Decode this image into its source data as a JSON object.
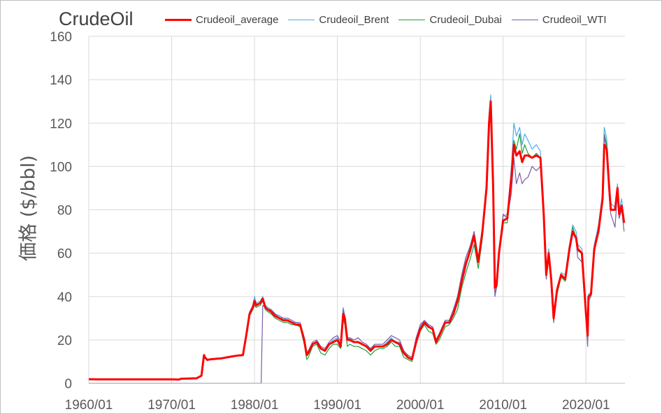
{
  "chart_data": {
    "type": "line",
    "title": "CrudeOil",
    "xlabel": "",
    "ylabel": "価格 ($/bbl)",
    "xlim": [
      1960.0,
      2024.7
    ],
    "ylim": [
      0,
      160
    ],
    "yticks": [
      0,
      20,
      40,
      60,
      80,
      100,
      120,
      140,
      160
    ],
    "xticks": [
      {
        "value": 1960,
        "label": "1960/01"
      },
      {
        "value": 1970,
        "label": "1970/01"
      },
      {
        "value": 1980,
        "label": "1980/01"
      },
      {
        "value": 1990,
        "label": "1990/01"
      },
      {
        "value": 2000,
        "label": "2000/01"
      },
      {
        "value": 2010,
        "label": "2010/01"
      },
      {
        "value": 2020,
        "label": "2020/01"
      }
    ],
    "grid": true,
    "legend_position": "top",
    "series": [
      {
        "name": "Crudeoil_average",
        "color": "#ff0000",
        "width": 3,
        "x": [
          1960.0,
          1961.0,
          1965.0,
          1970.0,
          1970.9,
          1971.1,
          1973.0,
          1973.6,
          1973.9,
          1974.0,
          1974.3,
          1974.6,
          1976.0,
          1977.0,
          1978.0,
          1978.6,
          1979.0,
          1979.4,
          1979.8,
          1980.0,
          1980.2,
          1980.7,
          1981.0,
          1981.3,
          1981.6,
          1982.0,
          1982.5,
          1983.0,
          1983.5,
          1984.0,
          1984.5,
          1985.0,
          1985.5,
          1986.0,
          1986.3,
          1986.5,
          1987.0,
          1987.5,
          1988.0,
          1988.5,
          1989.0,
          1989.5,
          1990.0,
          1990.4,
          1990.7,
          1990.9,
          1991.2,
          1991.5,
          1992.0,
          1992.5,
          1993.0,
          1993.5,
          1994.0,
          1994.5,
          1995.0,
          1995.5,
          1996.0,
          1996.5,
          1997.0,
          1997.5,
          1998.0,
          1998.5,
          1999.0,
          1999.5,
          2000.0,
          2000.5,
          2001.0,
          2001.5,
          2001.9,
          2002.3,
          2003.0,
          2003.5,
          2004.0,
          2004.5,
          2005.0,
          2005.5,
          2006.0,
          2006.5,
          2007.0,
          2007.5,
          2008.0,
          2008.3,
          2008.5,
          2008.8,
          2009.0,
          2009.2,
          2009.5,
          2010.0,
          2010.5,
          2011.0,
          2011.3,
          2011.6,
          2012.0,
          2012.3,
          2012.6,
          2013.0,
          2013.5,
          2014.0,
          2014.5,
          2014.9,
          2015.2,
          2015.5,
          2015.8,
          2016.1,
          2016.5,
          2017.0,
          2017.5,
          2018.0,
          2018.4,
          2018.8,
          2019.0,
          2019.5,
          2020.0,
          2020.2,
          2020.3,
          2020.6,
          2021.0,
          2021.5,
          2022.0,
          2022.2,
          2022.5,
          2022.8,
          2023.0,
          2023.5,
          2023.8,
          2024.0,
          2024.3,
          2024.6
        ],
        "values": [
          1.9,
          1.8,
          1.8,
          1.8,
          1.7,
          2.1,
          2.3,
          3.5,
          13,
          12,
          10.8,
          11,
          11.5,
          12.2,
          12.8,
          13,
          22,
          32,
          35,
          38,
          36,
          37,
          39,
          35,
          34,
          33,
          31,
          30,
          29,
          29,
          28,
          27,
          27,
          20,
          13,
          14,
          18,
          19,
          16,
          15,
          18,
          19,
          20,
          17,
          32,
          30,
          20,
          20,
          19,
          19,
          18,
          17,
          15,
          17,
          17,
          17,
          18,
          20,
          19,
          18,
          14,
          12,
          11,
          19,
          25,
          28,
          26,
          25,
          19,
          22,
          28,
          28,
          32,
          38,
          47,
          55,
          61,
          68,
          56,
          70,
          90,
          120,
          130,
          90,
          44,
          45,
          60,
          75,
          76,
          95,
          110,
          105,
          107,
          102,
          105,
          105,
          104,
          105,
          104,
          78,
          50,
          60,
          48,
          30,
          43,
          50,
          48,
          62,
          70,
          67,
          62,
          60,
          32,
          22,
          40,
          41,
          62,
          70,
          85,
          110,
          108,
          90,
          80,
          80,
          90,
          78,
          82,
          74
        ]
      },
      {
        "name": "Crudeoil_Brent",
        "color": "#4aaee8",
        "width": 1.2,
        "x": [
          1960.0,
          1961.0,
          1965.0,
          1970.0,
          1970.9,
          1971.1,
          1973.0,
          1973.6,
          1973.9,
          1974.0,
          1974.3,
          1974.6,
          1976.0,
          1977.0,
          1978.0,
          1978.6,
          1979.0,
          1979.4,
          1979.8,
          1980.0,
          1980.2,
          1980.7,
          1981.0,
          1981.3,
          1981.6,
          1982.0,
          1982.5,
          1983.0,
          1983.5,
          1984.0,
          1984.5,
          1985.0,
          1985.5,
          1986.0,
          1986.3,
          1986.5,
          1987.0,
          1987.5,
          1988.0,
          1988.5,
          1989.0,
          1989.5,
          1990.0,
          1990.4,
          1990.7,
          1990.9,
          1991.2,
          1991.5,
          1992.0,
          1992.5,
          1993.0,
          1993.5,
          1994.0,
          1994.5,
          1995.0,
          1995.5,
          1996.0,
          1996.5,
          1997.0,
          1997.5,
          1998.0,
          1998.5,
          1999.0,
          1999.5,
          2000.0,
          2000.5,
          2001.0,
          2001.5,
          2001.9,
          2002.3,
          2003.0,
          2003.5,
          2004.0,
          2004.5,
          2005.0,
          2005.5,
          2006.0,
          2006.5,
          2007.0,
          2007.5,
          2008.0,
          2008.3,
          2008.5,
          2008.8,
          2009.0,
          2009.2,
          2009.5,
          2010.0,
          2010.5,
          2011.0,
          2011.3,
          2011.6,
          2012.0,
          2012.3,
          2012.6,
          2013.0,
          2013.5,
          2014.0,
          2014.5,
          2014.9,
          2015.2,
          2015.5,
          2015.8,
          2016.1,
          2016.5,
          2017.0,
          2017.5,
          2018.0,
          2018.4,
          2018.8,
          2019.0,
          2019.5,
          2020.0,
          2020.2,
          2020.3,
          2020.6,
          2021.0,
          2021.5,
          2022.0,
          2022.2,
          2022.5,
          2022.8,
          2023.0,
          2023.5,
          2023.8,
          2024.0,
          2024.3,
          2024.6
        ],
        "values": [
          1.9,
          1.8,
          1.8,
          1.8,
          1.7,
          2.1,
          2.3,
          3.5,
          13,
          12,
          10.8,
          11,
          11.5,
          12.2,
          12.8,
          13,
          22,
          33,
          36,
          40,
          37,
          38,
          40,
          36,
          35,
          34,
          32,
          30,
          30,
          29,
          28,
          28,
          27,
          20,
          13,
          14,
          18,
          19,
          16,
          15,
          18,
          20,
          21,
          18,
          35,
          31,
          20,
          21,
          19,
          19,
          18,
          17,
          16,
          17,
          17,
          17,
          19,
          21,
          19,
          19,
          14,
          12,
          11,
          20,
          26,
          29,
          27,
          26,
          20,
          23,
          29,
          29,
          34,
          40,
          50,
          58,
          63,
          70,
          57,
          72,
          93,
          124,
          133,
          95,
          45,
          46,
          62,
          77,
          78,
          100,
          120,
          114,
          118,
          110,
          115,
          112,
          108,
          110,
          107,
          80,
          52,
          62,
          50,
          31,
          44,
          51,
          50,
          64,
          73,
          70,
          64,
          62,
          33,
          21,
          41,
          42,
          64,
          73,
          88,
          118,
          113,
          93,
          83,
          81,
          92,
          80,
          85,
          74
        ]
      },
      {
        "name": "Crudeoil_Dubai",
        "color": "#1e9e3a",
        "width": 1.2,
        "x": [
          1960.0,
          1961.0,
          1965.0,
          1970.0,
          1970.9,
          1971.1,
          1973.0,
          1973.6,
          1973.9,
          1974.0,
          1974.3,
          1974.6,
          1976.0,
          1977.0,
          1978.0,
          1978.6,
          1979.0,
          1979.4,
          1979.8,
          1980.0,
          1980.2,
          1980.7,
          1981.0,
          1981.3,
          1981.6,
          1982.0,
          1982.5,
          1983.0,
          1983.5,
          1984.0,
          1984.5,
          1985.0,
          1985.5,
          1986.0,
          1986.3,
          1986.5,
          1987.0,
          1987.5,
          1988.0,
          1988.5,
          1989.0,
          1989.5,
          1990.0,
          1990.4,
          1990.7,
          1990.9,
          1991.2,
          1991.5,
          1992.0,
          1992.5,
          1993.0,
          1993.5,
          1994.0,
          1994.5,
          1995.0,
          1995.5,
          1996.0,
          1996.5,
          1997.0,
          1997.5,
          1998.0,
          1998.5,
          1999.0,
          1999.5,
          2000.0,
          2000.5,
          2001.0,
          2001.5,
          2001.9,
          2002.3,
          2003.0,
          2003.5,
          2004.0,
          2004.5,
          2005.0,
          2005.5,
          2006.0,
          2006.5,
          2007.0,
          2007.5,
          2008.0,
          2008.3,
          2008.5,
          2008.8,
          2009.0,
          2009.2,
          2009.5,
          2010.0,
          2010.5,
          2011.0,
          2011.3,
          2011.6,
          2012.0,
          2012.3,
          2012.6,
          2013.0,
          2013.5,
          2014.0,
          2014.5,
          2014.9,
          2015.2,
          2015.5,
          2015.8,
          2016.1,
          2016.5,
          2017.0,
          2017.5,
          2018.0,
          2018.4,
          2018.8,
          2019.0,
          2019.5,
          2020.0,
          2020.2,
          2020.3,
          2020.6,
          2021.0,
          2021.5,
          2022.0,
          2022.2,
          2022.5,
          2022.8,
          2023.0,
          2023.5,
          2023.8,
          2024.0,
          2024.3,
          2024.6
        ],
        "values": [
          1.9,
          1.8,
          1.8,
          1.8,
          1.7,
          2.1,
          2.3,
          3.5,
          13,
          12,
          10.8,
          11,
          11.5,
          12.2,
          12.8,
          13,
          21,
          31,
          34,
          36,
          35,
          36,
          38,
          34,
          33,
          32,
          30,
          29,
          28,
          28,
          27,
          27,
          26,
          18,
          11,
          12,
          17,
          18,
          14,
          13,
          16,
          18,
          18,
          16,
          30,
          27,
          17,
          18,
          17,
          17,
          16,
          15,
          13,
          15,
          16,
          16,
          17,
          19,
          17,
          17,
          12,
          11,
          10,
          18,
          24,
          27,
          24,
          23,
          18,
          20,
          26,
          27,
          30,
          34,
          44,
          51,
          57,
          64,
          53,
          67,
          88,
          118,
          130,
          88,
          42,
          44,
          58,
          74,
          74,
          98,
          112,
          108,
          115,
          106,
          110,
          106,
          104,
          106,
          104,
          76,
          50,
          60,
          46,
          28,
          41,
          49,
          47,
          61,
          72,
          67,
          61,
          60,
          30,
          22,
          39,
          41,
          61,
          71,
          84,
          115,
          110,
          88,
          80,
          80,
          90,
          78,
          81,
          74
        ]
      },
      {
        "name": "Crudeoil_WTI",
        "color": "#7b5ea7",
        "width": 1.2,
        "x": [
          1960.0,
          1979.9,
          1980.0,
          1980.8,
          1981.0,
          1981.3,
          1981.6,
          1982.0,
          1982.5,
          1983.0,
          1983.5,
          1984.0,
          1984.5,
          1985.0,
          1985.5,
          1986.0,
          1986.3,
          1986.5,
          1987.0,
          1987.5,
          1988.0,
          1988.5,
          1989.0,
          1989.5,
          1990.0,
          1990.4,
          1990.7,
          1990.9,
          1991.2,
          1991.5,
          1992.0,
          1992.5,
          1993.0,
          1993.5,
          1994.0,
          1994.5,
          1995.0,
          1995.5,
          1996.0,
          1996.5,
          1997.0,
          1997.5,
          1998.0,
          1998.5,
          1999.0,
          1999.5,
          2000.0,
          2000.5,
          2001.0,
          2001.5,
          2001.9,
          2002.3,
          2003.0,
          2003.5,
          2004.0,
          2004.5,
          2005.0,
          2005.5,
          2006.0,
          2006.5,
          2007.0,
          2007.5,
          2008.0,
          2008.3,
          2008.5,
          2008.8,
          2009.0,
          2009.2,
          2009.5,
          2010.0,
          2010.5,
          2011.0,
          2011.3,
          2011.6,
          2012.0,
          2012.3,
          2012.6,
          2013.0,
          2013.5,
          2014.0,
          2014.5,
          2014.9,
          2015.2,
          2015.5,
          2015.8,
          2016.1,
          2016.5,
          2017.0,
          2017.5,
          2018.0,
          2018.4,
          2018.8,
          2019.0,
          2019.5,
          2020.0,
          2020.2,
          2020.3,
          2020.6,
          2021.0,
          2021.5,
          2022.0,
          2022.2,
          2022.5,
          2022.8,
          2023.0,
          2023.5,
          2023.8,
          2024.0,
          2024.3,
          2024.6
        ],
        "values": [
          0,
          0,
          0,
          0,
          36,
          35,
          34,
          34,
          32,
          31,
          30,
          30,
          29,
          28,
          28,
          21,
          14,
          15,
          19,
          20,
          17,
          16,
          19,
          21,
          22,
          19,
          34,
          31,
          21,
          21,
          20,
          21,
          19,
          18,
          16,
          18,
          18,
          18,
          20,
          22,
          21,
          20,
          15,
          13,
          12,
          21,
          27,
          29,
          27,
          26,
          20,
          23,
          29,
          29,
          34,
          40,
          50,
          58,
          63,
          70,
          57,
          72,
          92,
          122,
          130,
          92,
          40,
          44,
          60,
          78,
          76,
          88,
          104,
          92,
          97,
          92,
          94,
          95,
          100,
          98,
          100,
          78,
          48,
          58,
          46,
          29,
          42,
          50,
          48,
          60,
          70,
          66,
          58,
          56,
          30,
          17,
          38,
          40,
          60,
          70,
          83,
          114,
          108,
          86,
          78,
          72,
          88,
          76,
          80,
          70
        ]
      }
    ]
  }
}
